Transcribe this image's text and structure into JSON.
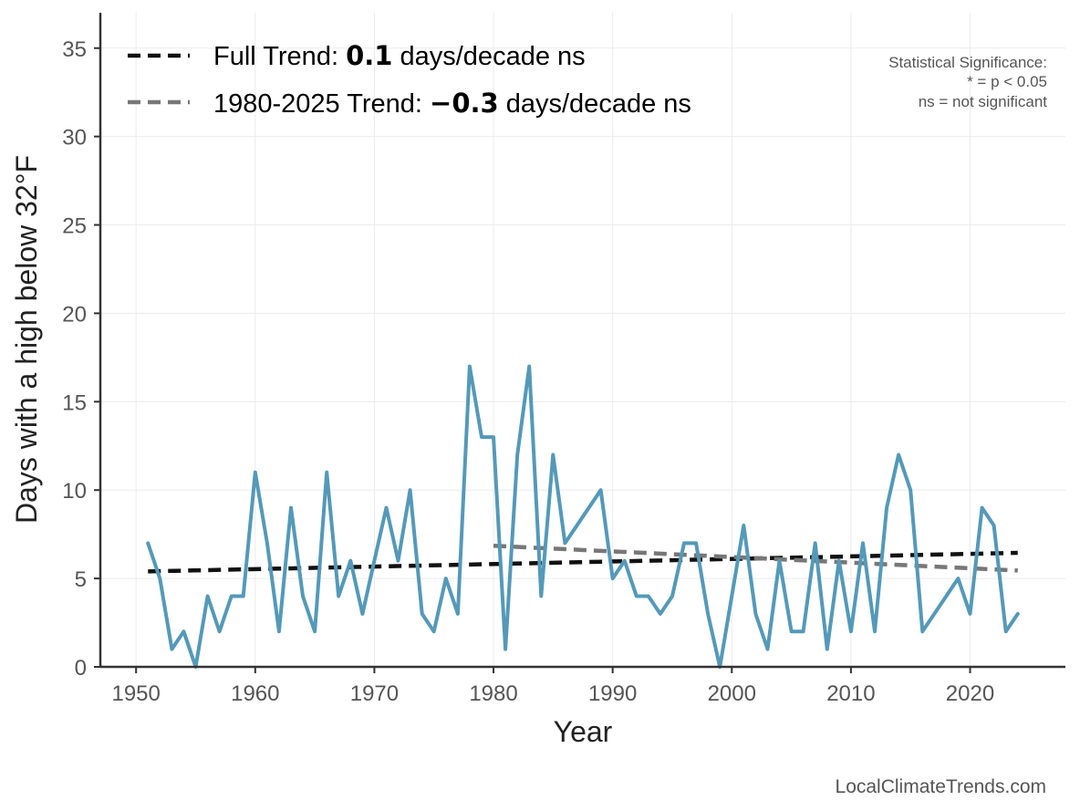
{
  "chart_data": {
    "type": "line",
    "xlabel": "Year",
    "ylabel": "Days with a high below 32°F",
    "xlim": [
      1947,
      2028
    ],
    "ylim": [
      0,
      37
    ],
    "xticks": [
      1950,
      1960,
      1970,
      1980,
      1990,
      2000,
      2010,
      2020
    ],
    "yticks": [
      0,
      5,
      10,
      15,
      20,
      25,
      30,
      35
    ],
    "grid": true,
    "legend_position": "top-left",
    "series": [
      {
        "name": "Days with a high below 32°F",
        "color": "#5499b9",
        "x": [
          1951,
          1952,
          1953,
          1954,
          1955,
          1956,
          1957,
          1958,
          1959,
          1960,
          1961,
          1962,
          1963,
          1964,
          1965,
          1966,
          1967,
          1968,
          1969,
          1970,
          1971,
          1972,
          1973,
          1974,
          1975,
          1976,
          1977,
          1978,
          1979,
          1980,
          1981,
          1982,
          1983,
          1984,
          1985,
          1986,
          1989,
          1990,
          1991,
          1992,
          1993,
          1994,
          1995,
          1996,
          1997,
          1998,
          1999,
          2001,
          2002,
          2003,
          2004,
          2005,
          2006,
          2007,
          2008,
          2009,
          2010,
          2011,
          2012,
          2013,
          2014,
          2015,
          2016,
          2019,
          2020,
          2021,
          2022,
          2023,
          2024
        ],
        "values": [
          7,
          5,
          1,
          2,
          0,
          4,
          2,
          4,
          4,
          11,
          7,
          2,
          9,
          4,
          2,
          11,
          4,
          6,
          3,
          6,
          9,
          6,
          10,
          3,
          2,
          5,
          3,
          17,
          13,
          13,
          1,
          12,
          17,
          4,
          12,
          7,
          10,
          5,
          6,
          4,
          4,
          3,
          4,
          7,
          7,
          3,
          0,
          8,
          3,
          1,
          6,
          2,
          2,
          7,
          1,
          6,
          2,
          7,
          2,
          9,
          12,
          10,
          2,
          5,
          3,
          9,
          8,
          2,
          3
        ]
      }
    ],
    "trends": [
      {
        "name": "Full Trend",
        "color": "#111111",
        "x": [
          1951,
          2024
        ],
        "values": [
          5.4,
          6.45
        ],
        "label_prefix": "Full Trend: ",
        "value_text": "0.1",
        "label_suffix": " days/decade ns"
      },
      {
        "name": "1980-2025 Trend",
        "color": "#777777",
        "x": [
          1980,
          2024
        ],
        "values": [
          6.85,
          5.45
        ],
        "label_prefix": "1980-2025 Trend: ",
        "value_text": "−0.3",
        "label_suffix": " days/decade ns"
      }
    ],
    "significance_note": {
      "title": "Statistical Significance:",
      "line1": "* = p < 0.05",
      "line2": "ns = not significant"
    },
    "source": "LocalClimateTrends.com"
  }
}
